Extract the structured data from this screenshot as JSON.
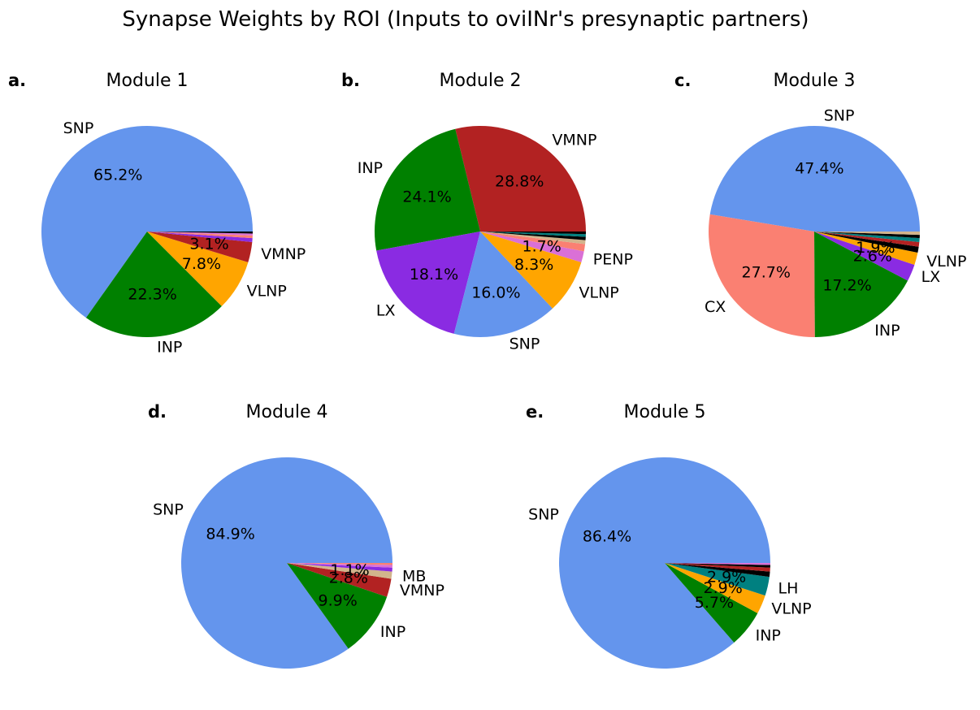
{
  "figure": {
    "title": "Synapse Weights by ROI (Inputs to oviINr's presynaptic partners)"
  },
  "chart_data": [
    {
      "type": "pie",
      "panel": "a.",
      "title": "Module 1",
      "slices": [
        {
          "label": "SNP",
          "value": 65.2,
          "color": "#6495ED",
          "show_label": true,
          "show_pct": true
        },
        {
          "label": "INP",
          "value": 22.3,
          "color": "#008000",
          "show_label": true,
          "show_pct": true
        },
        {
          "label": "VLNP",
          "value": 7.8,
          "color": "#FFA500",
          "show_label": true,
          "show_pct": true
        },
        {
          "label": "VMNP",
          "value": 3.1,
          "color": "#B22222",
          "show_label": true,
          "show_pct": true
        },
        {
          "label": "",
          "value": 0.6,
          "color": "#8A2BE2",
          "show_label": false,
          "show_pct": false
        },
        {
          "label": "",
          "value": 0.4,
          "color": "#FA8072",
          "show_label": false,
          "show_pct": false
        },
        {
          "label": "",
          "value": 0.3,
          "color": "#DA70D6",
          "show_label": false,
          "show_pct": false
        },
        {
          "label": "",
          "value": 0.3,
          "color": "#000000",
          "show_label": false,
          "show_pct": false
        }
      ]
    },
    {
      "type": "pie",
      "panel": "b.",
      "title": "Module 2",
      "slices": [
        {
          "label": "VMNP",
          "value": 28.8,
          "color": "#B22222",
          "show_label": true,
          "show_pct": true
        },
        {
          "label": "INP",
          "value": 24.1,
          "color": "#008000",
          "show_label": true,
          "show_pct": true
        },
        {
          "label": "LX",
          "value": 18.1,
          "color": "#8A2BE2",
          "show_label": true,
          "show_pct": true
        },
        {
          "label": "SNP",
          "value": 16.0,
          "color": "#6495ED",
          "show_label": true,
          "show_pct": true
        },
        {
          "label": "VLNP",
          "value": 8.3,
          "color": "#FFA500",
          "show_label": true,
          "show_pct": true
        },
        {
          "label": "PENP",
          "value": 1.7,
          "color": "#DA70D6",
          "show_label": true,
          "show_pct": true
        },
        {
          "label": "",
          "value": 1.1,
          "color": "#FA8072",
          "show_label": false,
          "show_pct": false
        },
        {
          "label": "",
          "value": 0.6,
          "color": "#D2B48C",
          "show_label": false,
          "show_pct": false
        },
        {
          "label": "",
          "value": 0.5,
          "color": "#000000",
          "show_label": false,
          "show_pct": false
        },
        {
          "label": "",
          "value": 0.4,
          "color": "#008080",
          "show_label": false,
          "show_pct": false
        },
        {
          "label": "",
          "value": 0.4,
          "color": "#000000",
          "show_label": false,
          "show_pct": false
        }
      ]
    },
    {
      "type": "pie",
      "panel": "c.",
      "title": "Module 3",
      "slices": [
        {
          "label": "SNP",
          "value": 47.4,
          "color": "#6495ED",
          "show_label": true,
          "show_pct": true
        },
        {
          "label": "CX",
          "value": 27.7,
          "color": "#FA8072",
          "show_label": true,
          "show_pct": true
        },
        {
          "label": "INP",
          "value": 17.2,
          "color": "#008000",
          "show_label": true,
          "show_pct": true
        },
        {
          "label": "LX",
          "value": 2.6,
          "color": "#8A2BE2",
          "show_label": true,
          "show_pct": true
        },
        {
          "label": "VLNP",
          "value": 1.9,
          "color": "#FFA500",
          "show_label": true,
          "show_pct": true
        },
        {
          "label": "",
          "value": 0.9,
          "color": "#000000",
          "show_label": false,
          "show_pct": false
        },
        {
          "label": "",
          "value": 0.7,
          "color": "#B22222",
          "show_label": false,
          "show_pct": false
        },
        {
          "label": "",
          "value": 0.6,
          "color": "#008080",
          "show_label": false,
          "show_pct": false
        },
        {
          "label": "",
          "value": 0.5,
          "color": "#000000",
          "show_label": false,
          "show_pct": false
        },
        {
          "label": "",
          "value": 0.5,
          "color": "#D2B48C",
          "show_label": false,
          "show_pct": false
        }
      ]
    },
    {
      "type": "pie",
      "panel": "d.",
      "title": "Module 4",
      "slices": [
        {
          "label": "SNP",
          "value": 84.9,
          "color": "#6495ED",
          "show_label": true,
          "show_pct": true
        },
        {
          "label": "INP",
          "value": 9.9,
          "color": "#008000",
          "show_label": true,
          "show_pct": true
        },
        {
          "label": "VMNP",
          "value": 2.8,
          "color": "#B22222",
          "show_label": true,
          "show_pct": true
        },
        {
          "label": "MB",
          "value": 1.1,
          "color": "#D2B48C",
          "show_label": true,
          "show_pct": true
        },
        {
          "label": "",
          "value": 0.6,
          "color": "#8A2BE2",
          "show_label": false,
          "show_pct": false
        },
        {
          "label": "",
          "value": 0.4,
          "color": "#DA70D6",
          "show_label": false,
          "show_pct": false
        },
        {
          "label": "",
          "value": 0.3,
          "color": "#FA8072",
          "show_label": false,
          "show_pct": false
        }
      ]
    },
    {
      "type": "pie",
      "panel": "e.",
      "title": "Module 5",
      "slices": [
        {
          "label": "SNP",
          "value": 86.4,
          "color": "#6495ED",
          "show_label": true,
          "show_pct": true
        },
        {
          "label": "INP",
          "value": 5.7,
          "color": "#008000",
          "show_label": true,
          "show_pct": true
        },
        {
          "label": "VLNP",
          "value": 2.9,
          "color": "#FFA500",
          "show_label": true,
          "show_pct": true
        },
        {
          "label": "LH",
          "value": 2.9,
          "color": "#008080",
          "show_label": true,
          "show_pct": true
        },
        {
          "label": "",
          "value": 0.8,
          "color": "#000000",
          "show_label": false,
          "show_pct": false
        },
        {
          "label": "",
          "value": 0.6,
          "color": "#B22222",
          "show_label": false,
          "show_pct": false
        },
        {
          "label": "",
          "value": 0.4,
          "color": "#000000",
          "show_label": false,
          "show_pct": false
        },
        {
          "label": "",
          "value": 0.3,
          "color": "#DA70D6",
          "show_label": false,
          "show_pct": false
        }
      ]
    }
  ]
}
